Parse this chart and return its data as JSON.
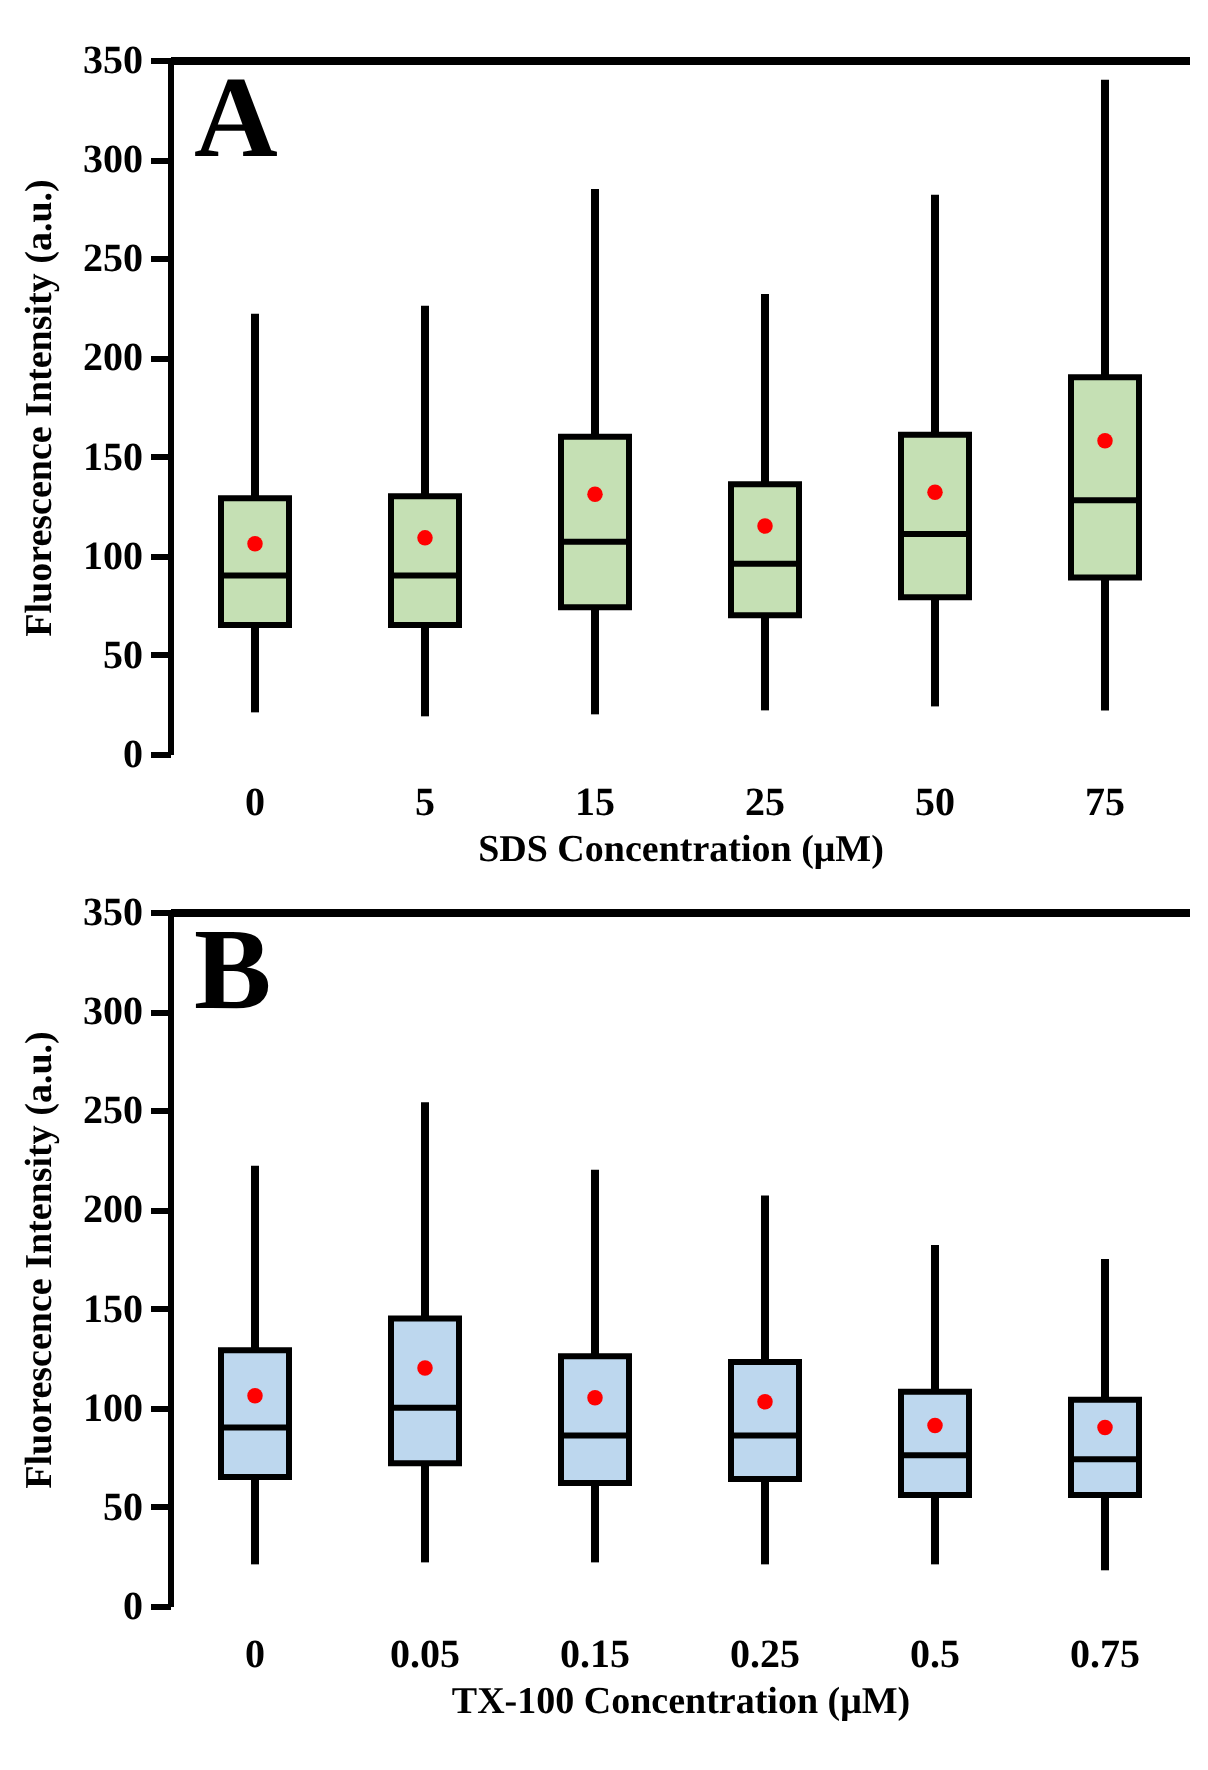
{
  "chart_data": [
    {
      "type": "box",
      "annotations": [
        "A"
      ],
      "xlabel": "SDS Concentration (μM)",
      "ylabel": "Fluorescence Intensity (a.u.)",
      "categories": [
        "0",
        "5",
        "15",
        "25",
        "50",
        "75"
      ],
      "color": "#c5e0b4",
      "ylim": [
        0,
        350
      ],
      "yticks": [
        0,
        50,
        100,
        150,
        200,
        250,
        300,
        350
      ],
      "grid": false,
      "boxes": [
        {
          "low": 21,
          "q1": 65,
          "median": 90,
          "q3": 129,
          "high": 222,
          "mean": 106
        },
        {
          "low": 19,
          "q1": 65,
          "median": 90,
          "q3": 130,
          "high": 226,
          "mean": 109
        },
        {
          "low": 20,
          "q1": 74,
          "median": 107,
          "q3": 160,
          "high": 285,
          "mean": 131
        },
        {
          "low": 22,
          "q1": 70,
          "median": 96,
          "q3": 136,
          "high": 232,
          "mean": 115
        },
        {
          "low": 24,
          "q1": 79,
          "median": 111,
          "q3": 161,
          "high": 282,
          "mean": 132
        },
        {
          "low": 22,
          "q1": 89,
          "median": 128,
          "q3": 190,
          "high": 340,
          "mean": 158
        }
      ]
    },
    {
      "type": "box",
      "annotations": [
        "B"
      ],
      "xlabel": "TX-100 Concentration (μM)",
      "ylabel": "Fluorescence Intensity (a.u.)",
      "categories": [
        "0",
        "0.05",
        "0.15",
        "0.25",
        "0.5",
        "0.75"
      ],
      "color": "#bdd7ee",
      "ylim": [
        0,
        350
      ],
      "yticks": [
        0,
        50,
        100,
        150,
        200,
        250,
        300,
        350
      ],
      "grid": false,
      "boxes": [
        {
          "low": 21,
          "q1": 65,
          "median": 90,
          "q3": 129,
          "high": 222,
          "mean": 106
        },
        {
          "low": 22,
          "q1": 72,
          "median": 100,
          "q3": 145,
          "high": 254,
          "mean": 120
        },
        {
          "low": 22,
          "q1": 62,
          "median": 86,
          "q3": 126,
          "high": 220,
          "mean": 105
        },
        {
          "low": 21,
          "q1": 64,
          "median": 86,
          "q3": 123,
          "high": 207,
          "mean": 103
        },
        {
          "low": 21,
          "q1": 56,
          "median": 76,
          "q3": 108,
          "high": 182,
          "mean": 91
        },
        {
          "low": 18,
          "q1": 56,
          "median": 74,
          "q3": 104,
          "high": 175,
          "mean": 90
        }
      ]
    }
  ]
}
